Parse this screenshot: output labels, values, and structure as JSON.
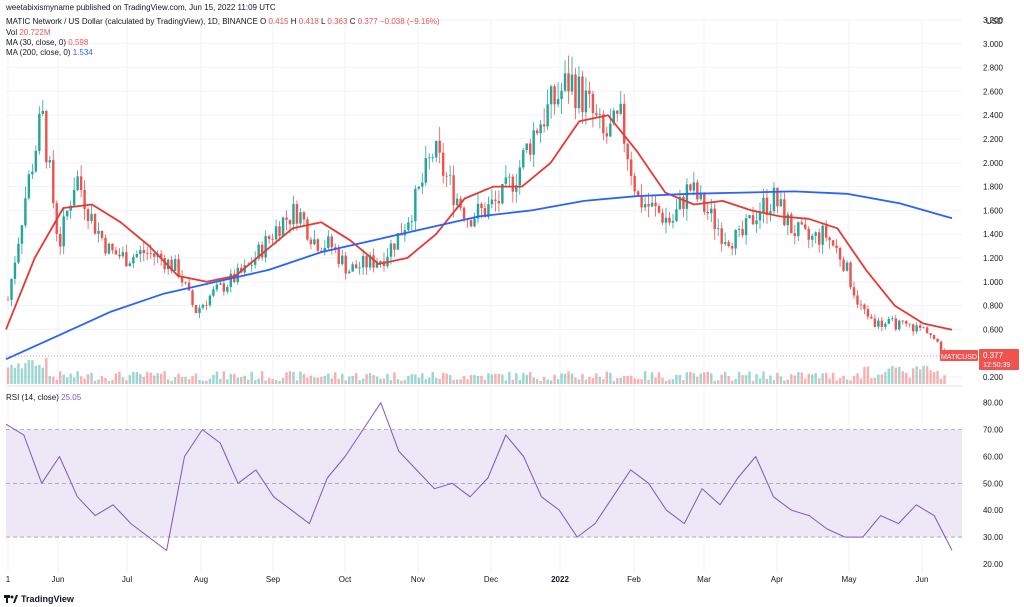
{
  "header": {
    "publisher_line": "weetabixismyname published on TradingView.com, Jun 15, 2022 11:09 UTC",
    "symbol_line": "MATIC Network / US Dollar (calculated by TradingView), 1D, BINANCE",
    "ohlc": {
      "o_label": "O",
      "o": "0.415",
      "h_label": "H",
      "h": "0.418",
      "l_label": "L",
      "l": "0.363",
      "c_label": "C",
      "c": "0.377",
      "chg": "−0.038 (−9.16%)"
    },
    "vol_label": "Vol",
    "vol_value": "20.722M",
    "ma30_label": "MA (30, close, 0)",
    "ma30_value": "0.598",
    "ma200_label": "MA (200, close, 0)",
    "ma200_value": "1.534",
    "rsi_label": "RSI (14, close)",
    "rsi_value": "25.05"
  },
  "currency": "USD",
  "price_tag": {
    "symbol": "MATICUSD",
    "price": "0.377",
    "countdown": "12:50:39"
  },
  "footer": {
    "brand": "TradingView"
  },
  "colors": {
    "up": "#26a69a",
    "down": "#ef5350",
    "ma30": "#e53935",
    "ma200": "#2962ff",
    "rsi": "#7e57c2",
    "rsi_band": "#ede7f6"
  },
  "chart_data": [
    {
      "type": "candlestick",
      "title": "MATIC Network / US Dollar, 1D",
      "y_ticks": [
        "3.200",
        "3.000",
        "2.800",
        "2.600",
        "2.400",
        "2.200",
        "2.000",
        "1.800",
        "1.600",
        "1.400",
        "1.200",
        "1.000",
        "0.800",
        "0.600",
        "0.400",
        "0.200"
      ],
      "ylim": [
        0.15,
        3.2
      ],
      "x_ticks": [
        "1",
        "Jun",
        "Jul",
        "Aug",
        "Sep",
        "Oct",
        "Nov",
        "Dec",
        "2022",
        "Feb",
        "Mar",
        "Apr",
        "May",
        "Jun"
      ],
      "series": [
        {
          "name": "MATICUSD close",
          "values": [
            0.85,
            1.7,
            2.4,
            1.3,
            1.9,
            1.5,
            1.25,
            1.2,
            1.25,
            1.2,
            1.1,
            0.75,
            0.9,
            1.0,
            1.1,
            1.3,
            1.5,
            1.6,
            1.35,
            1.3,
            1.1,
            1.15,
            1.2,
            1.4,
            1.7,
            2.1,
            1.8,
            1.55,
            1.6,
            1.7,
            1.95,
            2.3,
            2.5,
            2.7,
            2.5,
            2.2,
            2.35,
            1.7,
            1.6,
            1.5,
            1.8,
            1.6,
            1.4,
            1.35,
            1.6,
            1.7,
            1.45,
            1.35,
            1.4,
            1.2,
            0.8,
            0.65,
            0.65,
            0.62,
            0.6,
            0.377
          ]
        },
        {
          "name": "MA (30, close, 0)",
          "values": [
            0.6,
            1.2,
            1.62,
            1.65,
            1.5,
            1.3,
            1.05,
            1.0,
            1.05,
            1.25,
            1.45,
            1.5,
            1.35,
            1.15,
            1.2,
            1.4,
            1.7,
            1.8,
            1.8,
            2.0,
            2.35,
            2.4,
            2.1,
            1.75,
            1.65,
            1.68,
            1.6,
            1.55,
            1.53,
            1.45,
            1.1,
            0.8,
            0.65,
            0.598
          ]
        },
        {
          "name": "MA (200, close, 0)",
          "values": [
            0.35,
            0.55,
            0.75,
            0.9,
            1.0,
            1.1,
            1.25,
            1.35,
            1.45,
            1.55,
            1.6,
            1.68,
            1.72,
            1.74,
            1.75,
            1.76,
            1.74,
            1.66,
            1.534
          ]
        }
      ]
    },
    {
      "type": "line",
      "title": "RSI (14, close)",
      "y_ticks": [
        "80.00",
        "70.00",
        "60.00",
        "50.00",
        "40.00",
        "30.00",
        "20.00"
      ],
      "ylim": [
        17,
        84
      ],
      "band": [
        30,
        70
      ],
      "series": [
        {
          "name": "RSI",
          "values": [
            72,
            68,
            50,
            60,
            45,
            38,
            42,
            35,
            30,
            25,
            60,
            70,
            65,
            50,
            55,
            45,
            40,
            35,
            52,
            60,
            70,
            80,
            62,
            55,
            48,
            50,
            45,
            52,
            68,
            60,
            45,
            40,
            30,
            35,
            45,
            55,
            50,
            40,
            35,
            48,
            42,
            52,
            60,
            45,
            40,
            38,
            33,
            30,
            30,
            38,
            35,
            42,
            38,
            25.05
          ]
        }
      ]
    }
  ]
}
